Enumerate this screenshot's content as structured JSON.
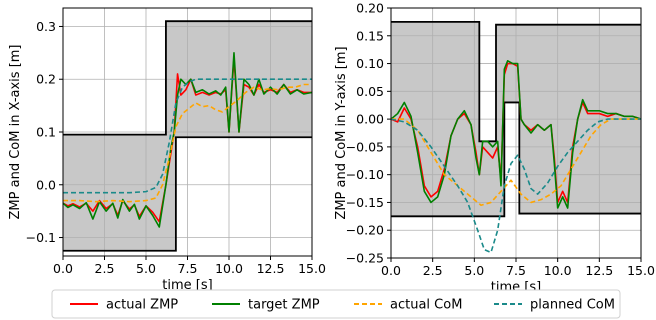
{
  "chart_data": [
    {
      "type": "line",
      "xlabel": "time [s]",
      "ylabel": "ZMP and CoM in X-axis [m]",
      "xlim": [
        0,
        15
      ],
      "ylim": [
        -0.135,
        0.335
      ],
      "xticks": [
        0,
        2.5,
        5,
        7.5,
        10,
        12.5,
        15
      ],
      "xtick_labels": [
        "0.0",
        "2.5",
        "5.0",
        "7.5",
        "10.0",
        "12.5",
        "15.0"
      ],
      "yticks": [
        -0.1,
        0,
        0.1,
        0.2,
        0.3
      ],
      "ytick_labels": [
        "−0.1",
        "0.0",
        "0.1",
        "0.2",
        "0.3"
      ],
      "grid": true,
      "support_region": {
        "upper": [
          [
            0,
            0.095
          ],
          [
            6.2,
            0.095
          ],
          [
            6.2,
            0.31
          ],
          [
            15,
            0.31
          ]
        ],
        "lower": [
          [
            0,
            -0.125
          ],
          [
            6.8,
            -0.125
          ],
          [
            6.8,
            0.09
          ],
          [
            15,
            0.09
          ]
        ]
      },
      "series": [
        {
          "name": "actual ZMP",
          "color": "#ff0000",
          "x": [
            0,
            0.3,
            0.6,
            1.0,
            1.4,
            1.8,
            2.2,
            2.6,
            3.0,
            3.3,
            3.6,
            4.0,
            4.3,
            4.6,
            5.0,
            5.4,
            5.8,
            6.2,
            6.5,
            6.7,
            6.9,
            7.1,
            7.4,
            7.7,
            8.0,
            8.4,
            8.8,
            9.2,
            9.5,
            9.8,
            10.0,
            10.3,
            10.6,
            10.9,
            11.2,
            11.5,
            11.8,
            12.1,
            12.5,
            12.9,
            13.3,
            13.7,
            14.1,
            14.5,
            15.0
          ],
          "y": [
            -0.035,
            -0.04,
            -0.036,
            -0.042,
            -0.035,
            -0.05,
            -0.03,
            -0.045,
            -0.036,
            -0.058,
            -0.03,
            -0.046,
            -0.038,
            -0.06,
            -0.04,
            -0.052,
            -0.07,
            0.0,
            0.06,
            0.1,
            0.21,
            0.17,
            0.18,
            0.2,
            0.17,
            0.175,
            0.17,
            0.175,
            0.172,
            0.18,
            0.1,
            0.24,
            0.1,
            0.19,
            0.185,
            0.17,
            0.19,
            0.175,
            0.18,
            0.175,
            0.19,
            0.175,
            0.18,
            0.175,
            0.175
          ]
        },
        {
          "name": "target ZMP",
          "color": "#008000",
          "x": [
            0,
            0.3,
            0.6,
            1.0,
            1.4,
            1.8,
            2.2,
            2.6,
            3.0,
            3.3,
            3.6,
            4.0,
            4.3,
            4.6,
            5.0,
            5.4,
            5.8,
            6.2,
            6.5,
            6.7,
            6.9,
            7.1,
            7.4,
            7.7,
            8.0,
            8.4,
            8.8,
            9.2,
            9.5,
            9.8,
            10.0,
            10.3,
            10.6,
            10.9,
            11.2,
            11.5,
            11.8,
            12.1,
            12.5,
            12.9,
            13.3,
            13.7,
            14.1,
            14.5,
            15.0
          ],
          "y": [
            -0.035,
            -0.043,
            -0.038,
            -0.045,
            -0.034,
            -0.065,
            -0.032,
            -0.05,
            -0.035,
            -0.063,
            -0.028,
            -0.05,
            -0.037,
            -0.065,
            -0.04,
            -0.058,
            -0.08,
            0.0,
            0.07,
            0.1,
            0.17,
            0.2,
            0.19,
            0.2,
            0.175,
            0.18,
            0.172,
            0.178,
            0.17,
            0.185,
            0.1,
            0.25,
            0.1,
            0.2,
            0.19,
            0.17,
            0.2,
            0.172,
            0.185,
            0.172,
            0.19,
            0.172,
            0.18,
            0.172,
            0.175
          ]
        },
        {
          "name": "actual CoM",
          "color": "#ffa500",
          "dash": true,
          "x": [
            0,
            1,
            2,
            3,
            4,
            5,
            5.6,
            6.0,
            6.4,
            6.8,
            7.2,
            7.6,
            8.0,
            8.4,
            8.8,
            9.2,
            9.6,
            10.0,
            10.5,
            11.0,
            11.5,
            12.0,
            12.5,
            13.0,
            13.5,
            14.0,
            14.5,
            15.0
          ],
          "y": [
            -0.03,
            -0.03,
            -0.032,
            -0.03,
            -0.032,
            -0.03,
            -0.025,
            0.0,
            0.05,
            0.11,
            0.135,
            0.145,
            0.155,
            0.148,
            0.15,
            0.142,
            0.138,
            0.148,
            0.16,
            0.175,
            0.185,
            0.18,
            0.182,
            0.18,
            0.185,
            0.185,
            0.19,
            0.19
          ]
        },
        {
          "name": "planned CoM",
          "color": "#1a8a8a",
          "dash": true,
          "x": [
            0,
            1,
            2,
            3,
            4,
            5,
            5.6,
            6.0,
            6.4,
            6.8,
            7.2,
            7.6,
            8.0,
            8.5,
            9.0,
            9.5,
            10.0,
            11.0,
            12.0,
            13.0,
            14.0,
            15.0
          ],
          "y": [
            -0.015,
            -0.015,
            -0.015,
            -0.015,
            -0.015,
            -0.013,
            -0.005,
            0.02,
            0.08,
            0.155,
            0.185,
            0.195,
            0.2,
            0.2,
            0.2,
            0.2,
            0.2,
            0.2,
            0.2,
            0.2,
            0.2,
            0.2
          ]
        }
      ]
    },
    {
      "type": "line",
      "xlabel": "time [s]",
      "ylabel": "ZMP and CoM in Y-axis [m]",
      "xlim": [
        0,
        15
      ],
      "ylim": [
        -0.25,
        0.2
      ],
      "xticks": [
        0,
        2.5,
        5,
        7.5,
        10,
        12.5,
        15
      ],
      "xtick_labels": [
        "0.0",
        "2.5",
        "5.0",
        "7.5",
        "10.0",
        "12.5",
        "15.0"
      ],
      "yticks": [
        -0.25,
        -0.2,
        -0.15,
        -0.1,
        -0.05,
        0,
        0.05,
        0.1,
        0.15,
        0.2
      ],
      "ytick_labels": [
        "−0.25",
        "−0.20",
        "−0.15",
        "−0.10",
        "−0.05",
        "0.00",
        "0.05",
        "0.10",
        "0.15",
        "0.20"
      ],
      "grid": true,
      "support_region": {
        "upper": [
          [
            0,
            0.175
          ],
          [
            5.3,
            0.175
          ],
          [
            5.3,
            -0.04
          ],
          [
            6.3,
            -0.04
          ],
          [
            6.3,
            0.17
          ],
          [
            15,
            0.17
          ]
        ],
        "lower": [
          [
            0,
            -0.175
          ],
          [
            6.8,
            -0.175
          ],
          [
            6.8,
            0.03
          ],
          [
            7.7,
            0.03
          ],
          [
            7.7,
            -0.17
          ],
          [
            15,
            -0.17
          ]
        ]
      },
      "series": [
        {
          "name": "actual ZMP",
          "color": "#ff0000",
          "x": [
            0,
            0.4,
            0.8,
            1.2,
            1.6,
            2.0,
            2.4,
            2.8,
            3.2,
            3.6,
            4.0,
            4.4,
            4.8,
            5.1,
            5.3,
            5.5,
            5.8,
            6.1,
            6.4,
            6.6,
            6.8,
            7.0,
            7.3,
            7.6,
            7.8,
            8.0,
            8.4,
            8.8,
            9.2,
            9.6,
            9.8,
            10.0,
            10.3,
            10.6,
            10.9,
            11.2,
            11.5,
            11.8,
            12.1,
            12.5,
            13.0,
            13.5,
            14.0,
            14.5,
            15.0
          ],
          "y": [
            0.0,
            -0.005,
            0.02,
            0.0,
            -0.05,
            -0.12,
            -0.14,
            -0.13,
            -0.09,
            -0.03,
            0.0,
            0.01,
            -0.01,
            -0.06,
            -0.1,
            -0.05,
            -0.06,
            -0.07,
            -0.05,
            -0.11,
            0.08,
            0.1,
            0.1,
            0.095,
            0.0,
            -0.01,
            -0.02,
            -0.01,
            -0.02,
            -0.01,
            -0.07,
            -0.15,
            -0.13,
            -0.15,
            -0.05,
            0.0,
            0.03,
            0.01,
            0.01,
            0.01,
            0.005,
            0.01,
            0.005,
            0.005,
            0.0
          ]
        },
        {
          "name": "target ZMP",
          "color": "#008000",
          "x": [
            0,
            0.4,
            0.8,
            1.2,
            1.6,
            2.0,
            2.4,
            2.8,
            3.2,
            3.6,
            4.0,
            4.4,
            4.8,
            5.1,
            5.3,
            5.5,
            5.8,
            6.1,
            6.4,
            6.6,
            6.8,
            7.0,
            7.3,
            7.6,
            7.8,
            8.0,
            8.4,
            8.8,
            9.2,
            9.6,
            9.8,
            10.0,
            10.3,
            10.6,
            10.9,
            11.2,
            11.5,
            11.8,
            12.1,
            12.5,
            13.0,
            13.5,
            14.0,
            14.5,
            15.0
          ],
          "y": [
            0.0,
            0.01,
            0.03,
            0.005,
            -0.06,
            -0.13,
            -0.15,
            -0.14,
            -0.1,
            -0.03,
            0.0,
            0.015,
            -0.01,
            -0.07,
            -0.1,
            -0.04,
            -0.04,
            -0.05,
            -0.04,
            -0.12,
            0.09,
            0.105,
            0.1,
            0.1,
            0.0,
            -0.01,
            -0.025,
            -0.01,
            -0.02,
            -0.01,
            -0.08,
            -0.16,
            -0.14,
            -0.16,
            -0.06,
            0.0,
            0.035,
            0.015,
            0.015,
            0.015,
            0.01,
            0.01,
            0.005,
            0.005,
            0.0
          ]
        },
        {
          "name": "actual CoM",
          "color": "#ffa500",
          "dash": true,
          "x": [
            0,
            0.8,
            1.6,
            2.4,
            3.2,
            4.0,
            4.8,
            5.4,
            6.0,
            6.6,
            7.2,
            7.8,
            8.4,
            9.0,
            9.6,
            10.2,
            10.8,
            11.4,
            12.0,
            12.6,
            13.2,
            13.8,
            14.4,
            15.0
          ],
          "y": [
            0.0,
            0.0,
            -0.02,
            -0.06,
            -0.1,
            -0.12,
            -0.14,
            -0.155,
            -0.15,
            -0.13,
            -0.11,
            -0.135,
            -0.15,
            -0.145,
            -0.135,
            -0.12,
            -0.09,
            -0.06,
            -0.03,
            -0.01,
            0.0,
            0.0,
            0.0,
            0.0
          ]
        },
        {
          "name": "planned CoM",
          "color": "#1a8a8a",
          "dash": true,
          "x": [
            0,
            0.8,
            1.6,
            2.4,
            3.2,
            4.0,
            4.6,
            5.2,
            5.6,
            6.0,
            6.4,
            6.8,
            7.2,
            7.6,
            8.0,
            8.4,
            8.8,
            9.4,
            10.0,
            10.6,
            11.2,
            11.8,
            12.4,
            13.0,
            14.0,
            15.0
          ],
          "y": [
            0.0,
            -0.005,
            -0.02,
            -0.05,
            -0.085,
            -0.12,
            -0.15,
            -0.2,
            -0.235,
            -0.24,
            -0.2,
            -0.12,
            -0.08,
            -0.065,
            -0.09,
            -0.125,
            -0.135,
            -0.115,
            -0.085,
            -0.06,
            -0.04,
            -0.02,
            -0.005,
            0.0,
            0.0,
            0.0
          ]
        }
      ]
    }
  ],
  "legend": {
    "placement": "bottom",
    "entries": [
      {
        "label": "actual ZMP",
        "color": "#ff0000",
        "dash": false
      },
      {
        "label": "target ZMP",
        "color": "#008000",
        "dash": false
      },
      {
        "label": "actual CoM",
        "color": "#ffa500",
        "dash": true
      },
      {
        "label": "planned CoM",
        "color": "#1a8a8a",
        "dash": true
      }
    ]
  }
}
